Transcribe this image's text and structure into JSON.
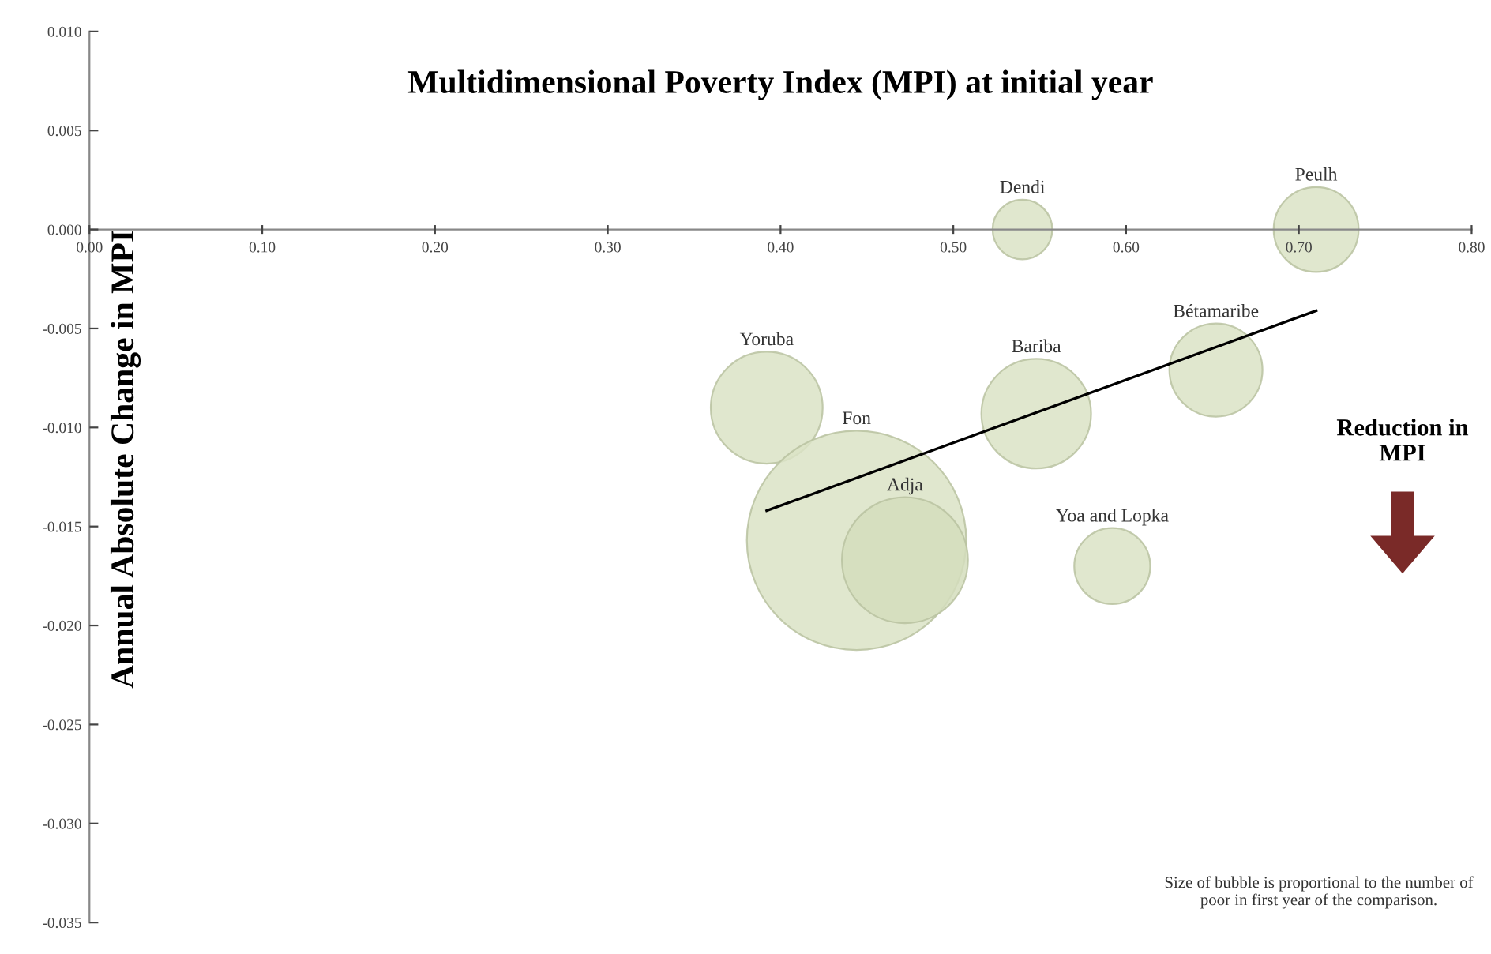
{
  "chart_data": {
    "type": "bubble",
    "title": "Multidimensional Poverty Index (MPI) at initial year",
    "ylabel": "Annual Absolute Change in MPI",
    "series": [
      {
        "name": "Dendi",
        "color": "#dbe3c6",
        "x": [
          0.54
        ],
        "values": [
          0.0
        ],
        "sizes": [
          0.074
        ]
      },
      {
        "name": "Peulh",
        "color": "#dbe3c6",
        "x": [
          0.71
        ],
        "values": [
          0.0
        ],
        "sizes": [
          0.15
        ]
      },
      {
        "name": "Bétamaribe",
        "color": "#dbe3c6",
        "x": [
          0.652
        ],
        "values": [
          -0.0071
        ],
        "sizes": [
          0.18
        ]
      },
      {
        "name": "Yoruba",
        "color": "#dbe3c6",
        "x": [
          0.392
        ],
        "values": [
          -0.009
        ],
        "sizes": [
          0.26
        ]
      },
      {
        "name": "Bariba",
        "color": "#dbe3c6",
        "x": [
          0.548
        ],
        "values": [
          -0.0093
        ],
        "sizes": [
          0.25
        ]
      },
      {
        "name": "Fon",
        "color": "#dbe3c6",
        "x": [
          0.444
        ],
        "values": [
          -0.0157
        ],
        "sizes": [
          1
        ]
      },
      {
        "name": "Adja",
        "color": "#d4ddbc",
        "x": [
          0.472
        ],
        "values": [
          -0.0167
        ],
        "sizes": [
          0.33
        ]
      },
      {
        "name": "Yoa and Lopka",
        "color": "#dbe3c6",
        "x": [
          0.592
        ],
        "values": [
          -0.017
        ],
        "sizes": [
          0.12
        ]
      },
      {
        "type": "line",
        "color": "#000000",
        "x": [
          0.392,
          0.71
        ],
        "values": [
          -0.0142,
          -0.0041
        ]
      }
    ],
    "xlim": [
      0,
      0.8
    ],
    "ylim": [
      -0.035,
      0.01
    ],
    "xticks": [
      {
        "value": 0,
        "label": "0.00"
      },
      {
        "value": 0.1,
        "label": "0.10"
      },
      {
        "value": 0.2,
        "label": "0.20"
      },
      {
        "value": 0.3,
        "label": "0.30"
      },
      {
        "value": 0.4,
        "label": "0.40"
      },
      {
        "value": 0.5,
        "label": "0.50"
      },
      {
        "value": 0.6,
        "label": "0.60"
      },
      {
        "value": 0.7,
        "label": "0.70"
      },
      {
        "value": 0.8,
        "label": "0.80"
      }
    ],
    "yticks": [
      {
        "value": 0.01,
        "label": "0.010"
      },
      {
        "value": 0.005,
        "label": "0.005"
      },
      {
        "value": 0,
        "label": "0.000"
      },
      {
        "value": -0.005,
        "label": "-0.005"
      },
      {
        "value": -0.01,
        "label": "-0.010"
      },
      {
        "value": -0.015,
        "label": "-0.015"
      },
      {
        "value": -0.02,
        "label": "-0.020"
      },
      {
        "value": -0.025,
        "label": "-0.025"
      },
      {
        "value": -0.03,
        "label": "-0.030"
      },
      {
        "value": -0.035,
        "label": "-0.035"
      }
    ],
    "grid": false,
    "legend": false,
    "annotations": [
      "Reduction in MPI",
      "Size of bubble is proportional to the number of poor in first year of the comparison."
    ]
  }
}
